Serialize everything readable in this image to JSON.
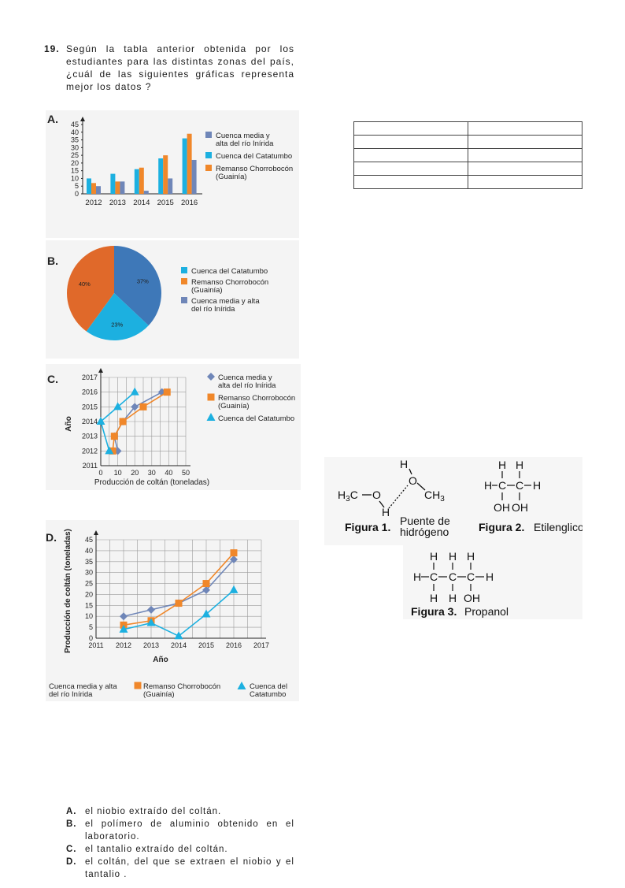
{
  "question": {
    "number": "19.",
    "text": "Según la tabla anterior obtenida por los estudiantes para las distintas zonas del país, ¿cuál de las siguientes gráficas representa mejor los datos ?"
  },
  "colors": {
    "inirida": "#6f86b8",
    "catatumbo": "#1cb0e0",
    "remanso": "#f0872a",
    "pie_orange": "#e0692a",
    "pie_blue": "#3e78b8"
  },
  "chart_data": [
    {
      "label": "A.",
      "type": "bar",
      "categories": [
        "2012",
        "2013",
        "2014",
        "2015",
        "2016"
      ],
      "series": [
        {
          "name": "Cuenca del Catatumbo",
          "values": [
            10,
            13,
            16,
            23,
            36
          ]
        },
        {
          "name": "Remanso Chorrobocón (Guainía)",
          "values": [
            7,
            8,
            17,
            25,
            39
          ]
        },
        {
          "name": "Cuenca media y alta del río Inírida",
          "values": [
            5,
            8,
            2,
            10,
            22
          ]
        }
      ],
      "ylim": [
        0,
        45
      ],
      "yticks": [
        "0",
        "5",
        "10",
        "15",
        "20",
        "25",
        "30",
        "35",
        "40",
        "45"
      ],
      "legend": [
        {
          "name": "Cuenca media y alta del río Inírida",
          "lines": [
            "Cuenca media y",
            "alta del río Inírida"
          ]
        },
        {
          "name": "Cuenca del Catatumbo",
          "lines": [
            "Cuenca del Catatumbo"
          ]
        },
        {
          "name": "Remanso Chorrobocón (Guainía)",
          "lines": [
            "Remanso Chorrobocón",
            "(Guainía)"
          ]
        }
      ]
    },
    {
      "label": "B.",
      "type": "pie",
      "slices": [
        {
          "name": "Cuenca media y alta del río Inírida",
          "value": 37,
          "text": "37%"
        },
        {
          "name": "Cuenca del Catatumbo",
          "value": 23,
          "text": "23%"
        },
        {
          "name": "Remanso Chorrobocón (Guainía)",
          "value": 40,
          "text": "40%"
        }
      ],
      "legend": [
        {
          "name": "Cuenca del Catatumbo",
          "lines": [
            "Cuenca del Catatumbo"
          ]
        },
        {
          "name": "Remanso Chorrobocón (Guainía)",
          "lines": [
            "Remanso Chorrobocón",
            "(Guainía)"
          ]
        },
        {
          "name": "Cuenca media y alta del río Inírida",
          "lines": [
            "Cuenca media y alta",
            "del río Inírida"
          ]
        }
      ]
    },
    {
      "label": "C.",
      "type": "line",
      "xlabel": "Producción de coltán (toneladas)",
      "ylabel": "Año",
      "xlim": [
        0,
        50
      ],
      "ylim": [
        2011,
        2017
      ],
      "xticks": [
        "0",
        "10",
        "20",
        "30",
        "40",
        "50"
      ],
      "yticks": [
        "2011",
        "2012",
        "2013",
        "2014",
        "2015",
        "2016",
        "2017"
      ],
      "series": [
        {
          "name": "Cuenca media y alta del río Inírida",
          "marker": "diamond",
          "points": [
            [
              10,
              2012
            ],
            [
              8,
              2013
            ],
            [
              13,
              2014
            ],
            [
              20,
              2015
            ],
            [
              36,
              2016
            ]
          ]
        },
        {
          "name": "Remanso Chorrobocón (Guainía)",
          "marker": "square",
          "points": [
            [
              7,
              2012
            ],
            [
              8,
              2013
            ],
            [
              13,
              2014
            ],
            [
              25,
              2015
            ],
            [
              39,
              2016
            ]
          ]
        },
        {
          "name": "Cuenca del Catatumbo",
          "marker": "triangle",
          "points": [
            [
              5,
              2012
            ],
            [
              0,
              2014
            ],
            [
              10,
              2015
            ],
            [
              20,
              2016
            ]
          ]
        }
      ],
      "legend": [
        {
          "name": "Cuenca media y alta del río Inírida",
          "lines": [
            "Cuenca media y",
            "alta del río Inírida"
          ]
        },
        {
          "name": "Remanso Chorrobocón (Guainía)",
          "lines": [
            "Remanso Chorrobocón",
            "(Guainía)"
          ]
        },
        {
          "name": "Cuenca del Catatumbo",
          "lines": [
            "Cuenca del Catatumbo"
          ]
        }
      ]
    },
    {
      "label": "D.",
      "type": "line",
      "xlabel": "Año",
      "ylabel": "Producción de coltán (toneladas)",
      "xlim": [
        2011,
        2017
      ],
      "ylim": [
        0,
        45
      ],
      "xticks": [
        "2011",
        "2012",
        "2013",
        "2014",
        "2015",
        "2016",
        "2017"
      ],
      "yticks": [
        "0",
        "5",
        "10",
        "15",
        "20",
        "25",
        "30",
        "35",
        "40",
        "45"
      ],
      "series": [
        {
          "name": "Cuenca media y alta del río Inírida",
          "marker": "diamond",
          "points": [
            [
              2012,
              10
            ],
            [
              2013,
              13
            ],
            [
              2014,
              16
            ],
            [
              2015,
              22
            ],
            [
              2016,
              36
            ]
          ]
        },
        {
          "name": "Remanso Chorrobocón (Guainía)",
          "marker": "square",
          "points": [
            [
              2012,
              6
            ],
            [
              2013,
              8
            ],
            [
              2014,
              16
            ],
            [
              2015,
              25
            ],
            [
              2016,
              39
            ]
          ]
        },
        {
          "name": "Cuenca del Catatumbo",
          "marker": "triangle",
          "points": [
            [
              2012,
              4
            ],
            [
              2013,
              7
            ],
            [
              2014,
              1
            ],
            [
              2015,
              11
            ],
            [
              2016,
              22
            ]
          ]
        }
      ],
      "legend": [
        {
          "name": "Cuenca media y alta del río Inírida",
          "lines": [
            "Cuenca media y alta",
            "del río Inírida"
          ]
        },
        {
          "name": "Remanso Chorrobocón (Guainía)",
          "lines": [
            "Remanso Chorrobocón",
            "(Guainía)"
          ]
        },
        {
          "name": "Cuenca del Catatumbo",
          "lines": [
            "Cuenca del",
            "Catatumbo"
          ]
        }
      ]
    }
  ],
  "figures": {
    "fig1_caption": "Figura 1.",
    "bridge_label_1": "Puente de",
    "bridge_label_2": "hidrógeno",
    "fig2_caption_bold": "Figura 2.",
    "fig2_caption_name": "Etilenglicol",
    "fig3_caption_bold": "Figura 3.",
    "fig3_caption_name": "Propanol"
  },
  "answers": [
    {
      "letter": "A.",
      "text": "el niobio extraído del coltán."
    },
    {
      "letter": "B.",
      "text": "el polímero de aluminio obtenido en el laboratorio."
    },
    {
      "letter": "C.",
      "text": "el tantalio extraído del coltán."
    },
    {
      "letter": "D.",
      "text": "el coltán, del que se extraen el niobio y el tantalio ."
    }
  ]
}
